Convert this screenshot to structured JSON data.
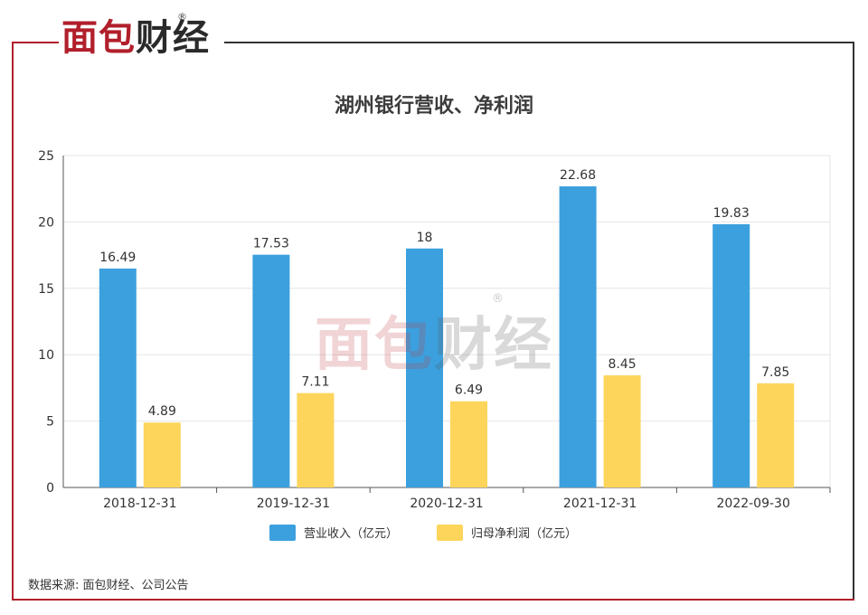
{
  "brand": {
    "logo_main": "面包",
    "logo_dark": "财经",
    "registered": "®"
  },
  "chart_data": {
    "type": "bar",
    "title": "湖州银行营收、净利润",
    "categories": [
      "2018-12-31",
      "2019-12-31",
      "2020-12-31",
      "2021-12-31",
      "2022-09-30"
    ],
    "series": [
      {
        "name": "营业收入（亿元）",
        "values": [
          16.49,
          17.53,
          18,
          22.68,
          19.83
        ],
        "labels": [
          "16.49",
          "17.53",
          "18",
          "22.68",
          "19.83"
        ],
        "color": "#3ca0de"
      },
      {
        "name": "归母净利润（亿元）",
        "values": [
          4.89,
          7.11,
          6.49,
          8.45,
          7.85
        ],
        "labels": [
          "4.89",
          "7.11",
          "6.49",
          "8.45",
          "7.85"
        ],
        "color": "#fdd55b"
      }
    ],
    "ylim": [
      0,
      25
    ],
    "yticks": [
      0,
      5,
      10,
      15,
      20,
      25
    ],
    "grid": true,
    "legend_position": "bottom"
  },
  "source_note": "数据来源: 面包财经、公司公告"
}
